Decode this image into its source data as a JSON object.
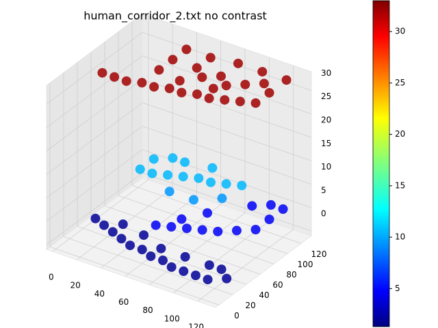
{
  "chart_data": {
    "type": "scatter3d",
    "title": "human_corridor_2.txt no contrast",
    "colormap": "jet",
    "x": [
      10,
      20,
      30,
      40,
      50,
      60,
      70,
      80,
      90,
      100,
      110,
      120,
      40,
      40,
      40,
      60,
      80,
      100,
      120,
      120,
      90,
      70,
      60,
      80,
      100,
      60,
      85,
      110,
      30,
      40,
      50,
      60,
      70,
      80,
      90,
      100,
      30,
      40,
      50,
      70,
      60,
      80,
      95,
      60,
      70,
      80,
      90,
      100,
      110,
      120,
      120,
      120,
      110,
      100,
      70,
      80,
      10,
      20,
      30,
      40,
      50,
      60,
      70,
      80,
      90,
      100,
      110,
      120,
      120,
      110,
      90,
      70,
      50,
      30,
      130
    ],
    "y": [
      50,
      50,
      50,
      55,
      55,
      60,
      60,
      65,
      65,
      70,
      75,
      80,
      80,
      100,
      120,
      120,
      125,
      125,
      125,
      100,
      90,
      90,
      100,
      100,
      100,
      75,
      80,
      110,
      70,
      70,
      75,
      80,
      85,
      85,
      90,
      95,
      90,
      100,
      100,
      105,
      60,
      60,
      75,
      40,
      45,
      50,
      55,
      60,
      70,
      80,
      100,
      120,
      120,
      110,
      60,
      80,
      40,
      35,
      30,
      25,
      20,
      20,
      15,
      15,
      10,
      10,
      10,
      10,
      30,
      30,
      30,
      30,
      40,
      45,
      20
    ],
    "z": [
      32,
      32,
      32,
      32,
      32,
      32,
      32,
      32,
      32,
      32,
      32,
      32,
      32,
      32,
      32,
      32,
      32,
      32,
      32,
      32,
      32,
      32,
      32,
      32,
      32,
      32,
      32,
      32,
      11,
      11,
      11,
      11,
      11,
      11,
      11,
      11,
      11,
      11,
      11,
      11,
      10,
      10,
      10,
      5,
      5,
      5,
      5,
      5,
      5,
      5,
      5,
      5,
      5,
      5,
      5,
      5,
      2,
      2,
      2,
      2,
      2,
      2,
      2,
      2,
      2,
      2,
      2,
      2,
      2,
      2,
      2,
      2,
      2,
      2,
      2
    ],
    "xlim": [
      -5,
      135
    ],
    "ylim": [
      -5,
      135
    ],
    "zlim": [
      -1,
      34
    ],
    "xticks": [
      0,
      20,
      40,
      60,
      80,
      100,
      120
    ],
    "yticks": [
      0,
      20,
      40,
      60,
      80,
      100,
      120
    ],
    "zticks": [
      0,
      5,
      10,
      15,
      20,
      25,
      30
    ],
    "clim": [
      1.3,
      33
    ],
    "cticks": [
      5,
      10,
      15,
      20,
      25,
      30
    ],
    "grid": true
  }
}
